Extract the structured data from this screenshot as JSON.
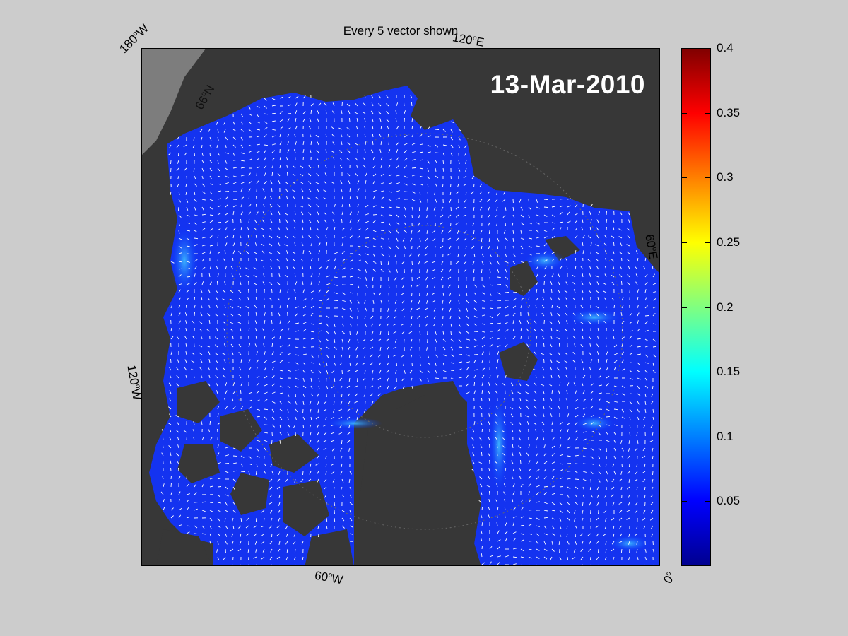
{
  "title": "Every 5 vector shown",
  "date": "13-Mar-2010",
  "map_labels": {
    "top_left": "180",
    "top_left_dir": "W",
    "top_right": "120",
    "top_right_dir": "E",
    "right": "60",
    "right_dir": "E",
    "left": "120",
    "left_dir": "W",
    "bottom": "60",
    "bottom_dir": "W",
    "bottom_right": "0",
    "lat": "66",
    "lat_dir": "N"
  },
  "colorbar": {
    "min": 0,
    "max": 0.4,
    "ticks": [
      "0.4",
      "0.35",
      "0.3",
      "0.25",
      "0.2",
      "0.15",
      "0.1",
      "0.05"
    ],
    "colormap": "jet"
  },
  "colors": {
    "background": "#cccccc",
    "land": "#373737",
    "ice": "#1a33ff",
    "vectors": "#ffffff"
  }
}
